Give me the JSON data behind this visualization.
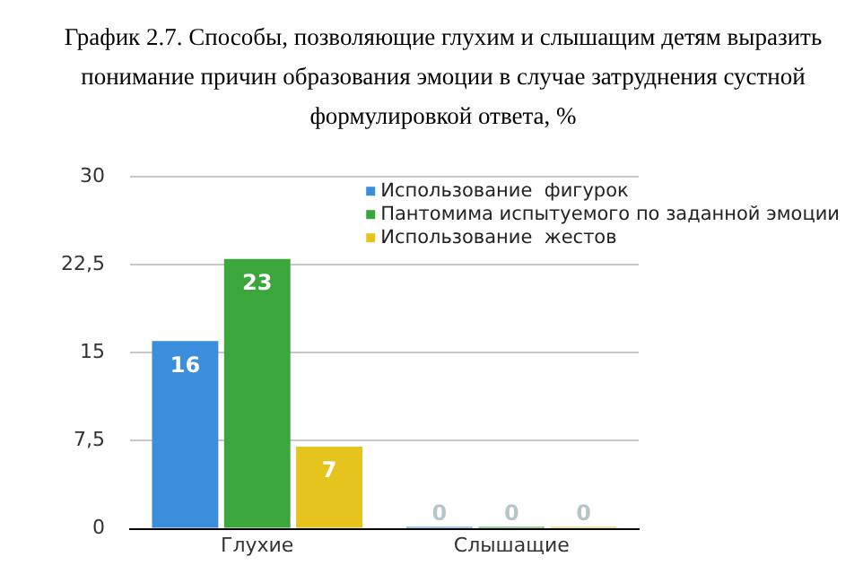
{
  "chart_data": {
    "type": "bar",
    "title": "График 2.7. Способы, позволяющие глухим и слышащим детям выразить понимание причин образования эмоции в случае затруднения сустной формулировкой ответа, %",
    "categories": [
      "Глухие",
      "Слышащие"
    ],
    "series": [
      {
        "name": "Использование  фигурок",
        "color": "#3b8edb",
        "values": [
          16,
          0
        ]
      },
      {
        "name": "Пантомима испытуемого по заданной эмоции",
        "color": "#3aa63c",
        "values": [
          23,
          0
        ]
      },
      {
        "name": "Использование  жестов",
        "color": "#e6c41e",
        "values": [
          7,
          0
        ]
      }
    ],
    "ylim": [
      0,
      30
    ],
    "yticks": [
      0,
      {
        "value": 7.5,
        "label": "7,5"
      },
      15,
      {
        "value": 22.5,
        "label": "22,5"
      },
      30
    ],
    "grid": "y",
    "legend": "top right",
    "data_labels": true
  }
}
